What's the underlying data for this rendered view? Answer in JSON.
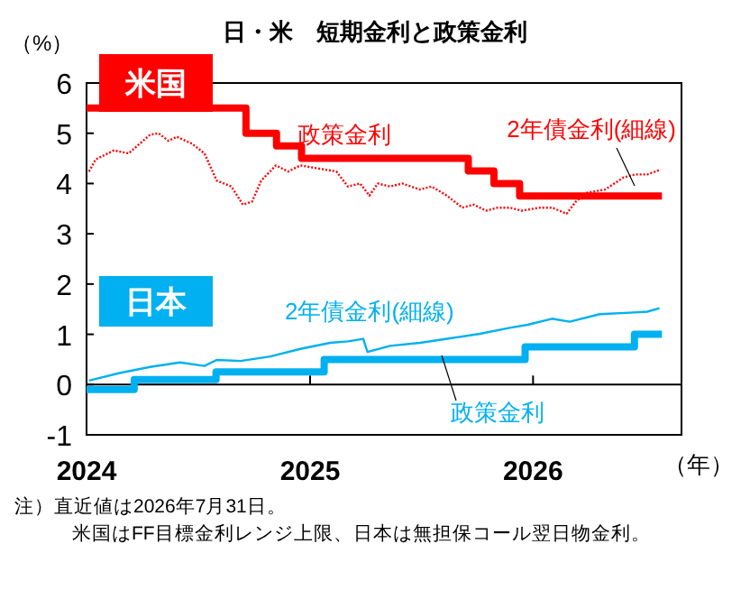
{
  "chart_data": {
    "type": "line",
    "title": "日・米　短期金利と政策金利",
    "ylabel": "（%）",
    "xlabel": "（年）",
    "xlim": [
      "2024-01-01",
      "2026-09-01"
    ],
    "xticks": [
      {
        "value": "2024-01-01",
        "label": "2024"
      },
      {
        "value": "2025-01-01",
        "label": "2025"
      },
      {
        "value": "2026-01-01",
        "label": "2026"
      }
    ],
    "ylim": [
      -1,
      6
    ],
    "yticks": [
      -1,
      0,
      1,
      2,
      3,
      4,
      5,
      6
    ],
    "annotations": [
      "米国",
      "日本",
      "注）直近値は2026年7月31日。",
      "米国はFF目標金利レンジ上限、日本は無担保コール翌日物金利。"
    ],
    "series": [
      {
        "name": "政策金利",
        "type": "step",
        "color": "#ff0000",
        "x": [
          "2024-01-01",
          "2024-09-18",
          "2024-11-07",
          "2024-12-18",
          "2025-09-17",
          "2025-10-29",
          "2025-12-10",
          "2026-07-31"
        ],
        "values": [
          5.5,
          5.0,
          4.75,
          4.5,
          4.25,
          4.0,
          3.75,
          3.75
        ]
      },
      {
        "name": "2年債金利(細線)",
        "type": "line",
        "color": "#ff0000",
        "line_style": "dotted",
        "x": [
          "2024-01-05",
          "2024-01-16",
          "2024-02-15",
          "2024-03-10",
          "2024-04-14",
          "2024-04-28",
          "2024-05-14",
          "2024-05-28",
          "2024-06-22",
          "2024-07-12",
          "2024-08-01",
          "2024-08-25",
          "2024-09-13",
          "2024-09-28",
          "2024-10-13",
          "2024-11-06",
          "2024-11-26",
          "2024-12-16",
          "2025-01-14",
          "2025-02-13",
          "2025-03-04",
          "2025-03-24",
          "2025-04-08",
          "2025-04-22",
          "2025-05-12",
          "2025-06-01",
          "2025-06-30",
          "2025-07-19",
          "2025-08-13",
          "2025-09-07",
          "2025-09-26",
          "2025-10-16",
          "2025-11-04",
          "2025-11-24",
          "2025-12-13",
          "2026-01-12",
          "2026-02-01",
          "2026-02-25",
          "2026-03-12",
          "2026-03-31",
          "2026-04-29",
          "2026-05-29",
          "2026-06-17",
          "2026-07-07",
          "2026-07-27"
        ],
        "values": [
          4.24,
          4.48,
          4.66,
          4.6,
          4.97,
          5.0,
          4.85,
          4.93,
          4.79,
          4.6,
          4.06,
          3.94,
          3.58,
          3.64,
          4.06,
          4.36,
          4.24,
          4.36,
          4.3,
          4.24,
          3.94,
          4.0,
          3.76,
          4.0,
          3.94,
          4.0,
          3.88,
          3.94,
          3.76,
          3.52,
          3.58,
          3.46,
          3.52,
          3.52,
          3.46,
          3.52,
          3.52,
          3.4,
          3.64,
          3.82,
          3.88,
          4.12,
          4.18,
          4.18,
          4.27
        ]
      },
      {
        "name": "政策金利",
        "type": "step",
        "color": "#00b0f0",
        "x": [
          "2024-01-01",
          "2024-03-19",
          "2024-07-31",
          "2025-01-24",
          "2025-12-19",
          "2026-06-16",
          "2026-07-31"
        ],
        "values": [
          -0.1,
          0.1,
          0.25,
          0.5,
          0.75,
          1.0,
          1.0
        ]
      },
      {
        "name": "2年債金利(細線)",
        "type": "line",
        "color": "#00b0f0",
        "x": [
          "2024-01-05",
          "2024-02-24",
          "2024-04-14",
          "2024-06-02",
          "2024-07-12",
          "2024-08-01",
          "2024-09-09",
          "2024-10-28",
          "2024-12-16",
          "2025-02-03",
          "2025-03-04",
          "2025-03-29",
          "2025-04-05",
          "2025-05-12",
          "2025-06-30",
          "2025-08-18",
          "2025-10-06",
          "2025-11-24",
          "2025-12-23",
          "2026-02-01",
          "2026-03-02",
          "2026-04-20",
          "2026-06-08",
          "2026-07-07",
          "2026-07-27"
        ],
        "values": [
          0.08,
          0.23,
          0.35,
          0.44,
          0.37,
          0.49,
          0.47,
          0.56,
          0.71,
          0.83,
          0.86,
          0.91,
          0.65,
          0.77,
          0.83,
          0.92,
          1.01,
          1.13,
          1.19,
          1.31,
          1.25,
          1.4,
          1.43,
          1.45,
          1.52
        ]
      }
    ]
  }
}
